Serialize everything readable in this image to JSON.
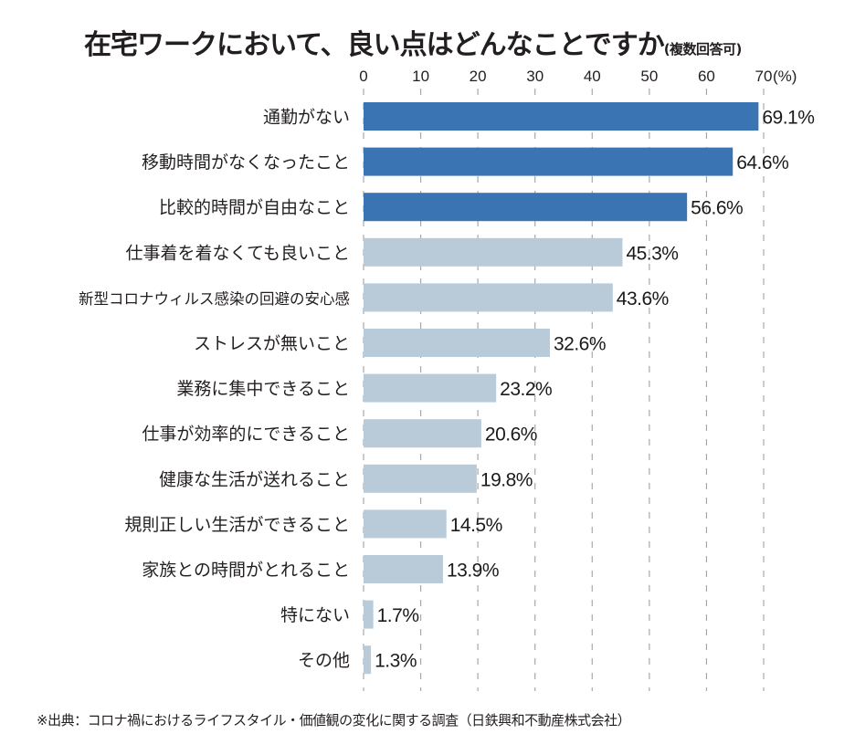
{
  "chart_data": {
    "type": "bar",
    "orientation": "horizontal",
    "title": "在宅ワークにおいて、良い点はどんなことですか",
    "subtitle": "(複数回答可)",
    "xlabel": "",
    "ylabel": "",
    "x_unit_label": "(%)",
    "xlim": [
      0,
      70
    ],
    "xticks": [
      0,
      10,
      20,
      30,
      40,
      50,
      60,
      70
    ],
    "xtick_labels": [
      "0",
      "10",
      "20",
      "30",
      "40",
      "50",
      "60",
      "70"
    ],
    "grid": "vertical-dashed",
    "categories": [
      "通勤がない",
      "移動時間がなくなったこと",
      "比較的時間が自由なこと",
      "仕事着を着なくても良いこと",
      "新型コロナウィルス感染の回避の安心感",
      "ストレスが無いこと",
      "業務に集中できること",
      "仕事が効率的にできること",
      "健康な生活が送れること",
      "規則正しい生活ができること",
      "家族との時間がとれること",
      "特にない",
      "その他"
    ],
    "values": [
      69.1,
      64.6,
      56.6,
      45.3,
      43.6,
      32.6,
      23.2,
      20.6,
      19.8,
      14.5,
      13.9,
      1.7,
      1.3
    ],
    "value_labels": [
      "69.1%",
      "64.6%",
      "56.6%",
      "45.3%",
      "43.6%",
      "32.6%",
      "23.2%",
      "20.6%",
      "19.8%",
      "14.5%",
      "13.9%",
      "1.7%",
      "1.3%"
    ],
    "highlight_count": 3,
    "colors": {
      "highlight": "#3a74b2",
      "normal": "#b9cbd8",
      "grid": "#a9a9a9"
    },
    "source": "※出典：コロナ禍におけるライフスタイル・価値観の変化に関する調査（日鉄興和不動産株式会社）"
  }
}
